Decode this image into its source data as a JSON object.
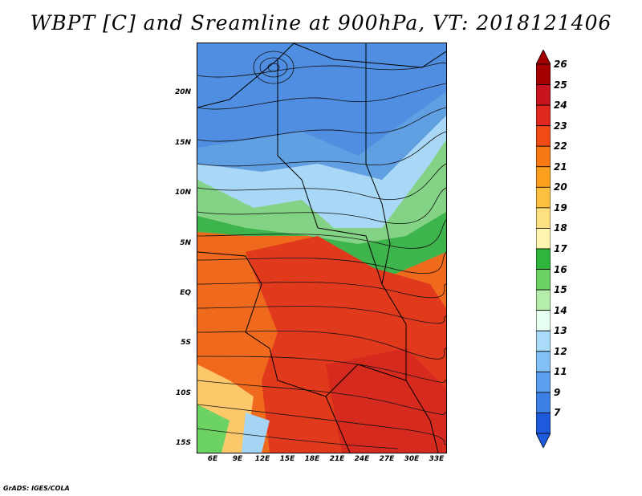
{
  "title": "WBPT [C] and Sreamline at 900hPa, VT: 2018121406",
  "credit": "GrADS: IGES/COLA",
  "map": {
    "lat_labels": [
      "20N",
      "15N",
      "10N",
      "5N",
      "EQ",
      "5S",
      "10S",
      "15S"
    ],
    "lon_labels": [
      "6E",
      "9E",
      "12E",
      "15E",
      "18E",
      "21E",
      "24E",
      "27E",
      "30E",
      "33E"
    ]
  },
  "colorbar": {
    "levels": [
      "26",
      "25",
      "24",
      "23",
      "22",
      "21",
      "20",
      "19",
      "18",
      "17",
      "16",
      "15",
      "14",
      "13",
      "12",
      "11",
      "9",
      "7"
    ],
    "colors": [
      "#a50000",
      "#c8141e",
      "#e0281e",
      "#f04b14",
      "#f87814",
      "#fba01e",
      "#fcc040",
      "#fde080",
      "#fff5b0",
      "#2fb43c",
      "#6cd264",
      "#b4eeaa",
      "#e6fff0",
      "#aadcfa",
      "#82c0f5",
      "#5aa0ee",
      "#3c80e6",
      "#1e5adc"
    ]
  }
}
